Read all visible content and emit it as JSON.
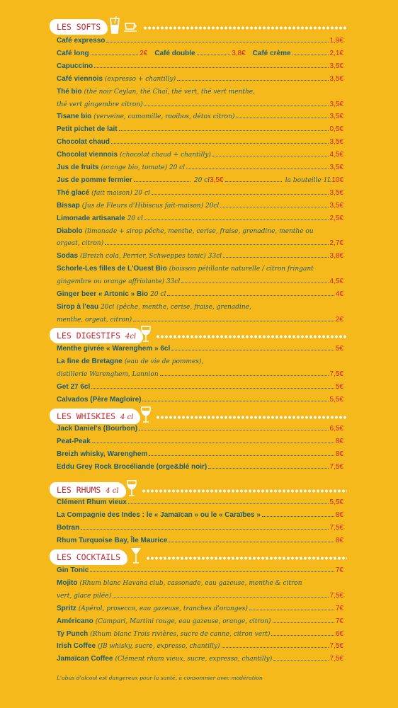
{
  "sections": {
    "softs": {
      "title": "LES SOFTS",
      "sub": "",
      "icon": "glass-and-cup-icon"
    },
    "digestifs": {
      "title": "LES DIGESTIFS",
      "sub": "4cl",
      "icon": "wine-glass-icon"
    },
    "whiskies": {
      "title": "LES WHISKIES",
      "sub": "4 cl",
      "icon": "wine-glass-icon"
    },
    "rhums": {
      "title": "LES RHUMS",
      "sub": "4 cl",
      "icon": "wine-glass-icon"
    },
    "cocktails": {
      "title": "LES COCKTAILS",
      "sub": "",
      "icon": "cocktail-glass-icon"
    }
  },
  "softs": [
    {
      "n": "Café expresso",
      "d": "",
      "p": "1,9€"
    },
    {
      "multi": true,
      "parts": [
        {
          "n": "Café long",
          "p": "2€"
        },
        {
          "n": "Café double",
          "p": "3,8€"
        },
        {
          "n": "Café crème",
          "p": "2,1€"
        }
      ]
    },
    {
      "n": "Capuccino",
      "d": "",
      "p": "3,5€"
    },
    {
      "n": "Café viennois",
      "d": "(expresso + chantilly)",
      "p": "3,5€"
    },
    {
      "n": "Thé bio",
      "d": "(thé noir Ceylan, thé Chaï, thé vert, thé vert menthe,",
      "p": ""
    },
    {
      "n": "",
      "d": "thé vert gingembre citron)",
      "p": "3,5€"
    },
    {
      "n": "Tisane bio",
      "d": "(verveine, camomille, rooibos, détox citron)",
      "p": "3,5€"
    },
    {
      "n": "Petit pichet de lait",
      "d": "",
      "p": "0,5€"
    },
    {
      "n": "Chocolat chaud",
      "d": "",
      "p": "3,5€"
    },
    {
      "n": "Chocolat viennois",
      "d": "(chocolat chaud + chantilly)",
      "p": "4,5€"
    },
    {
      "n": "Jus de fruits",
      "d": "(orange bio, tomate) 20 cl",
      "p": "3,5€"
    },
    {
      "pomme": true,
      "n": "Jus de pomme fermier",
      "a": "20 cl",
      "ap": "3,5€",
      "b": "la bouteille 1L",
      "bp": "10€"
    },
    {
      "n": "Thé glacé",
      "d": "(fait maison) 20 cl",
      "p": "3,5€"
    },
    {
      "n": "Bissap",
      "d": "(Jus de Fleurs d'Hibiscus fait-maison) 20cl",
      "p": "3,5€"
    },
    {
      "n": "Limonade artisanale",
      "d": "20 cl",
      "p": "2,5€"
    },
    {
      "n": "Diabolo",
      "d": "(limonade + sirop pêche, menthe, cerise, fraise, grenadine, menthe ou",
      "p": ""
    },
    {
      "n": "",
      "d": "orgeat, citron)",
      "p": "2,7€"
    },
    {
      "n": "Sodas",
      "d": "(Breizh cola, Perrier, Schweppes tonic) 33cl",
      "p": "3,8€"
    },
    {
      "n": "Schorle-Les filles de L'Ouest Bio",
      "d": "(boisson pétillante naturelle / citron fringant",
      "p": ""
    },
    {
      "n": "",
      "d": "gingembre ou orange affriolante) 33cl",
      "p": "4,5€"
    },
    {
      "n": "Ginger beer « Artonic » Bio",
      "d": "20 cl",
      "p": "4€"
    },
    {
      "n": "Sirop à l'eau",
      "d": "20cl (pêche, menthe, cerise, fraise, grenadine,",
      "p": ""
    },
    {
      "n": "",
      "d": "menthe, orgeat, citron)",
      "p": "2€"
    }
  ],
  "digestifs": [
    {
      "n": "Menthe givrée « Warenghem » 6cl",
      "d": "",
      "p": "5€"
    },
    {
      "n": "La fine de Bretagne",
      "d": "(eau de vie de pommes),",
      "p": ""
    },
    {
      "n": "",
      "d": "distillerie Warenghem, Lannion",
      "p": "7,5€"
    },
    {
      "n": "Get 27 6cl",
      "d": "",
      "p": "5€"
    },
    {
      "n": "Calvados (Père Magloire)",
      "d": "",
      "p": "5,5€"
    }
  ],
  "whiskies": [
    {
      "n": "Jack Daniel's (Bourbon)",
      "d": "",
      "p": "6,5€"
    },
    {
      "n": "Peat-Peak",
      "d": "",
      "p": "8€"
    },
    {
      "n": "Breizh whisky, Warenghem",
      "d": "",
      "p": "8€"
    },
    {
      "n": "Eddu Grey Rock Brocéliande (orge&blé noir)",
      "d": "",
      "p": "7,5€"
    }
  ],
  "rhums": [
    {
      "n": "Clément Rhum vieux",
      "d": "",
      "p": "5,5€"
    },
    {
      "n": "La Compagnie des Indes : le « Jamaïcan » ou le « Caraïbes »",
      "d": "",
      "p": "8€"
    },
    {
      "n": "Botran",
      "d": "",
      "p": "7,5€"
    },
    {
      "n": "Rhum Turquoise Bay, Île Maurice",
      "d": "",
      "p": "8€"
    }
  ],
  "cocktails": [
    {
      "n": "Gin Tonic",
      "d": "",
      "p": "7€"
    },
    {
      "n": "Mojito",
      "d": "(Rhum blanc Havana club, cassonade, eau gazeuse, menthe & citron",
      "p": ""
    },
    {
      "n": "",
      "d": "vert, glace pilée)",
      "p": "7,5€"
    },
    {
      "n": "Spritz",
      "d": "(Apérol, prosecco, eau gazeuse, tranches d'oranges)",
      "p": "7€"
    },
    {
      "n": "Américano",
      "d": "(Campari, Martini rouge, eau gazeuse, orange, citron)",
      "p": "7€"
    },
    {
      "n": "Ty Punch",
      "d": "(Rhum blanc Trois rivières, sucre de canne, citron vert)",
      "p": "6€"
    },
    {
      "n": "Irish Coffee",
      "d": "(JB whisky, sucre, expresso, chantilly)",
      "p": "7,5€"
    },
    {
      "n": "Jamaïcan Coffee",
      "d": "(Clément rhum vieux, sucre, expresso, chantilly)",
      "p": "7,5€"
    }
  ],
  "footer": "L'abus d'alcool est dangereux pour la santé, à consommer avec modération",
  "colors": {
    "background": "#f5b91c",
    "name": "#1b5c73",
    "price": "#c9252c",
    "label_bg": "#ffffff"
  }
}
